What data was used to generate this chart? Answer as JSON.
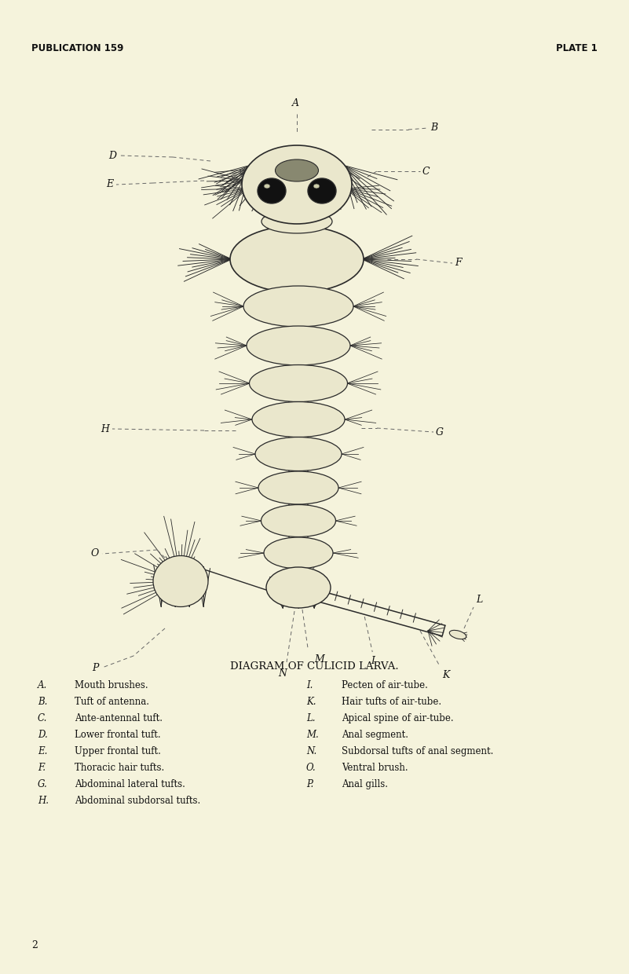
{
  "bg_color": "#F5F3DC",
  "header_left": "PUBLICATION 159",
  "header_right": "PLATE 1",
  "title": "DIAGRAM OF CULICID LARVA.",
  "footer_number": "2",
  "left_labels": [
    [
      "A.",
      "Mouth brushes."
    ],
    [
      "B.",
      "Tuft of antenna."
    ],
    [
      "C.",
      "Ante-antennal tuft."
    ],
    [
      "D.",
      "Lower frontal tuft."
    ],
    [
      "E.",
      "Upper frontal tuft."
    ],
    [
      "F.",
      "Thoracic hair tufts."
    ],
    [
      "G.",
      "Abdominal lateral tufts."
    ],
    [
      "H.",
      "Abdominal subdorsal tufts."
    ]
  ],
  "right_labels": [
    [
      "I.",
      "Pecten of air-tube."
    ],
    [
      "K.",
      "Hair tufts of air-tube."
    ],
    [
      "L.",
      "Apical spine of air-tube."
    ],
    [
      "M.",
      "Anal segment."
    ],
    [
      "N.",
      "Subdorsal tufts of anal segment."
    ],
    [
      "O.",
      "Ventral brush."
    ],
    [
      "P.",
      "Anal gills."
    ]
  ],
  "line_color": "#2a2a2a",
  "text_color": "#111111",
  "body_fill": "#EAE7CC",
  "dark_fill": "#111111"
}
